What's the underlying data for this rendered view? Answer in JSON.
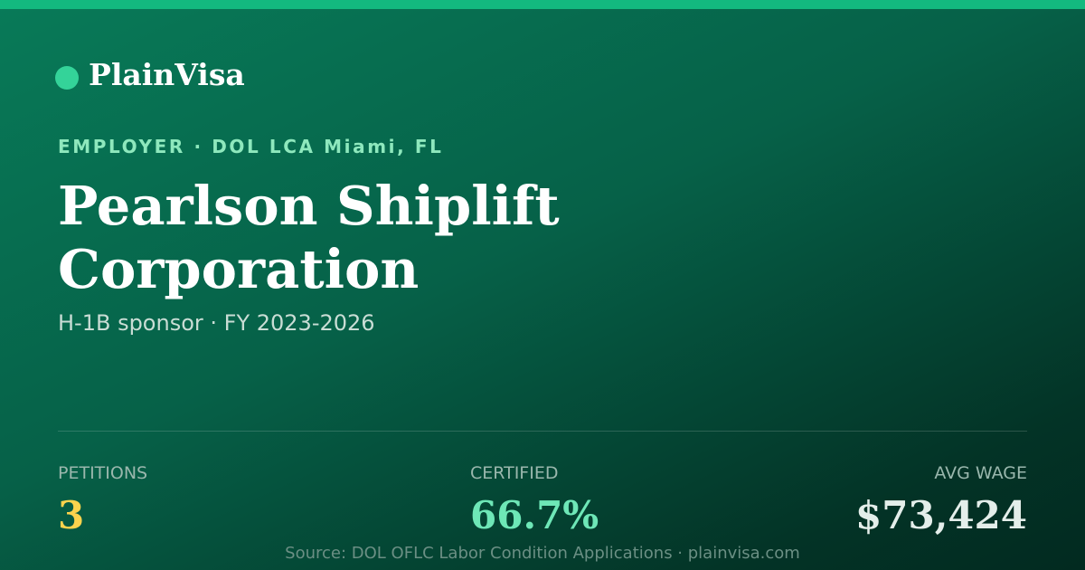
{
  "brand": "PlainVisa",
  "eyebrow": "EMPLOYER · DOL LCA Miami, FL",
  "title": "Pearlson Shiplift Corporation",
  "subtitle": "H-1B sponsor · FY 2023-2026",
  "stats": [
    {
      "label": "PETITIONS",
      "value": "3"
    },
    {
      "label": "CERTIFIED",
      "value": "66.7%"
    },
    {
      "label": "AVG WAGE",
      "value": "$73,424"
    }
  ],
  "footer": "Source: DOL OFLC Labor Condition Applications · plainvisa.com"
}
